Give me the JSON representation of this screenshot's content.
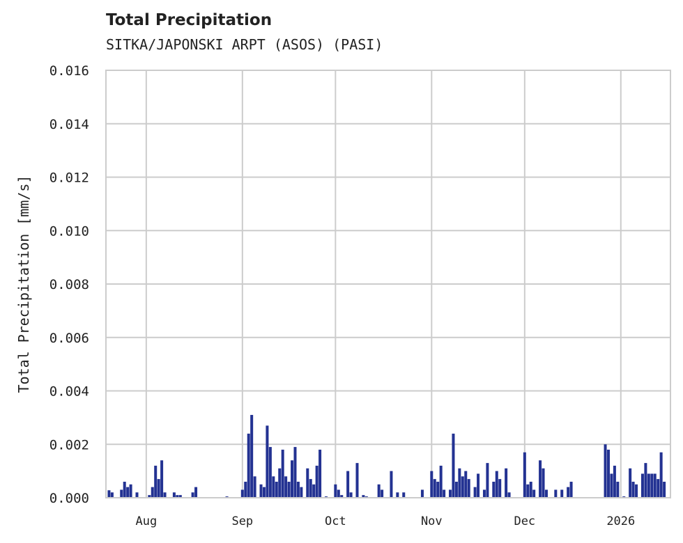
{
  "header": {
    "title": "Total Precipitation",
    "subtitle": "SITKA/JAPONSKI ARPT (ASOS) (PASI)"
  },
  "colors": {
    "bar": "#233292",
    "grid": "#cccccc",
    "text": "#222222"
  },
  "chart_data": {
    "type": "bar",
    "title": "Total Precipitation",
    "subtitle": "SITKA/JAPONSKI ARPT (ASOS) (PASI)",
    "xlabel": "",
    "ylabel": "Total Precipitation [mm/s]",
    "ylim": [
      0.0,
      0.016
    ],
    "yticks": [
      "0.000",
      "0.002",
      "0.004",
      "0.006",
      "0.008",
      "0.010",
      "0.012",
      "0.014",
      "0.016"
    ],
    "xticks": [
      "Aug",
      "Sep",
      "Oct",
      "Nov",
      "Dec",
      "2026"
    ],
    "grid": true,
    "legend": null,
    "x_range": [
      "2025-07-19",
      "2026-01-17"
    ],
    "series": [
      {
        "name": "Total Precipitation",
        "points": [
          {
            "date": "2025-07-20",
            "value": 0.00028
          },
          {
            "date": "2025-07-21",
            "value": 0.0002
          },
          {
            "date": "2025-07-24",
            "value": 0.0003
          },
          {
            "date": "2025-07-25",
            "value": 0.0006
          },
          {
            "date": "2025-07-26",
            "value": 0.0004
          },
          {
            "date": "2025-07-27",
            "value": 0.0005
          },
          {
            "date": "2025-07-29",
            "value": 0.0002
          },
          {
            "date": "2025-08-02",
            "value": 0.0001
          },
          {
            "date": "2025-08-03",
            "value": 0.0004
          },
          {
            "date": "2025-08-04",
            "value": 0.0012
          },
          {
            "date": "2025-08-05",
            "value": 0.0007
          },
          {
            "date": "2025-08-06",
            "value": 0.0014
          },
          {
            "date": "2025-08-07",
            "value": 0.0002
          },
          {
            "date": "2025-08-10",
            "value": 0.0002
          },
          {
            "date": "2025-08-11",
            "value": 0.0001
          },
          {
            "date": "2025-08-12",
            "value": 0.0001
          },
          {
            "date": "2025-08-16",
            "value": 0.0002
          },
          {
            "date": "2025-08-17",
            "value": 0.0004
          },
          {
            "date": "2025-08-27",
            "value": 5e-05
          },
          {
            "date": "2025-09-01",
            "value": 0.0003
          },
          {
            "date": "2025-09-02",
            "value": 0.0006
          },
          {
            "date": "2025-09-03",
            "value": 0.0024
          },
          {
            "date": "2025-09-04",
            "value": 0.0031
          },
          {
            "date": "2025-09-05",
            "value": 0.0008
          },
          {
            "date": "2025-09-07",
            "value": 0.0005
          },
          {
            "date": "2025-09-08",
            "value": 0.0004
          },
          {
            "date": "2025-09-09",
            "value": 0.0027
          },
          {
            "date": "2025-09-10",
            "value": 0.0019
          },
          {
            "date": "2025-09-11",
            "value": 0.0008
          },
          {
            "date": "2025-09-12",
            "value": 0.0006
          },
          {
            "date": "2025-09-13",
            "value": 0.0011
          },
          {
            "date": "2025-09-14",
            "value": 0.0018
          },
          {
            "date": "2025-09-15",
            "value": 0.0008
          },
          {
            "date": "2025-09-16",
            "value": 0.0006
          },
          {
            "date": "2025-09-17",
            "value": 0.0014
          },
          {
            "date": "2025-09-18",
            "value": 0.0019
          },
          {
            "date": "2025-09-19",
            "value": 0.0006
          },
          {
            "date": "2025-09-20",
            "value": 0.0004
          },
          {
            "date": "2025-09-22",
            "value": 0.0011
          },
          {
            "date": "2025-09-23",
            "value": 0.0007
          },
          {
            "date": "2025-09-24",
            "value": 0.0005
          },
          {
            "date": "2025-09-25",
            "value": 0.0012
          },
          {
            "date": "2025-09-26",
            "value": 0.0018
          },
          {
            "date": "2025-09-28",
            "value": 5e-05
          },
          {
            "date": "2025-10-01",
            "value": 0.0005
          },
          {
            "date": "2025-10-02",
            "value": 0.0003
          },
          {
            "date": "2025-10-03",
            "value": 0.0001
          },
          {
            "date": "2025-10-05",
            "value": 0.001
          },
          {
            "date": "2025-10-06",
            "value": 0.0002
          },
          {
            "date": "2025-10-08",
            "value": 0.0013
          },
          {
            "date": "2025-10-10",
            "value": 0.0001
          },
          {
            "date": "2025-10-11",
            "value": 5e-05
          },
          {
            "date": "2025-10-15",
            "value": 0.0005
          },
          {
            "date": "2025-10-16",
            "value": 0.0003
          },
          {
            "date": "2025-10-19",
            "value": 0.001
          },
          {
            "date": "2025-10-21",
            "value": 0.0002
          },
          {
            "date": "2025-10-23",
            "value": 0.0002
          },
          {
            "date": "2025-10-29",
            "value": 0.0003
          },
          {
            "date": "2025-11-01",
            "value": 0.001
          },
          {
            "date": "2025-11-02",
            "value": 0.0007
          },
          {
            "date": "2025-11-03",
            "value": 0.0006
          },
          {
            "date": "2025-11-04",
            "value": 0.0012
          },
          {
            "date": "2025-11-05",
            "value": 0.0003
          },
          {
            "date": "2025-11-07",
            "value": 0.0003
          },
          {
            "date": "2025-11-08",
            "value": 0.0024
          },
          {
            "date": "2025-11-09",
            "value": 0.0006
          },
          {
            "date": "2025-11-10",
            "value": 0.0011
          },
          {
            "date": "2025-11-11",
            "value": 0.0008
          },
          {
            "date": "2025-11-12",
            "value": 0.001
          },
          {
            "date": "2025-11-13",
            "value": 0.0007
          },
          {
            "date": "2025-11-15",
            "value": 0.0004
          },
          {
            "date": "2025-11-16",
            "value": 0.0009
          },
          {
            "date": "2025-11-18",
            "value": 0.0003
          },
          {
            "date": "2025-11-19",
            "value": 0.0013
          },
          {
            "date": "2025-11-21",
            "value": 0.0006
          },
          {
            "date": "2025-11-22",
            "value": 0.001
          },
          {
            "date": "2025-11-23",
            "value": 0.0007
          },
          {
            "date": "2025-11-25",
            "value": 0.0011
          },
          {
            "date": "2025-11-26",
            "value": 0.0002
          },
          {
            "date": "2025-12-01",
            "value": 0.0017
          },
          {
            "date": "2025-12-02",
            "value": 0.0005
          },
          {
            "date": "2025-12-03",
            "value": 0.0006
          },
          {
            "date": "2025-12-04",
            "value": 0.0003
          },
          {
            "date": "2025-12-06",
            "value": 0.0014
          },
          {
            "date": "2025-12-07",
            "value": 0.0011
          },
          {
            "date": "2025-12-08",
            "value": 0.0003
          },
          {
            "date": "2025-12-11",
            "value": 0.0003
          },
          {
            "date": "2025-12-13",
            "value": 0.0003
          },
          {
            "date": "2025-12-15",
            "value": 0.0004
          },
          {
            "date": "2025-12-16",
            "value": 0.0006
          },
          {
            "date": "2025-12-27",
            "value": 0.002
          },
          {
            "date": "2025-12-28",
            "value": 0.0018
          },
          {
            "date": "2025-12-29",
            "value": 0.0009
          },
          {
            "date": "2025-12-30",
            "value": 0.0012
          },
          {
            "date": "2025-12-31",
            "value": 0.0006
          },
          {
            "date": "2026-01-02",
            "value": 5e-05
          },
          {
            "date": "2026-01-04",
            "value": 0.0011
          },
          {
            "date": "2026-01-05",
            "value": 0.0006
          },
          {
            "date": "2026-01-06",
            "value": 0.0005
          },
          {
            "date": "2026-01-08",
            "value": 0.0009
          },
          {
            "date": "2026-01-09",
            "value": 0.0013
          },
          {
            "date": "2026-01-10",
            "value": 0.0009
          },
          {
            "date": "2026-01-11",
            "value": 0.0009
          },
          {
            "date": "2026-01-12",
            "value": 0.0009
          },
          {
            "date": "2026-01-13",
            "value": 0.0007
          },
          {
            "date": "2026-01-14",
            "value": 0.0017
          },
          {
            "date": "2026-01-15",
            "value": 0.0006
          }
        ]
      }
    ]
  }
}
